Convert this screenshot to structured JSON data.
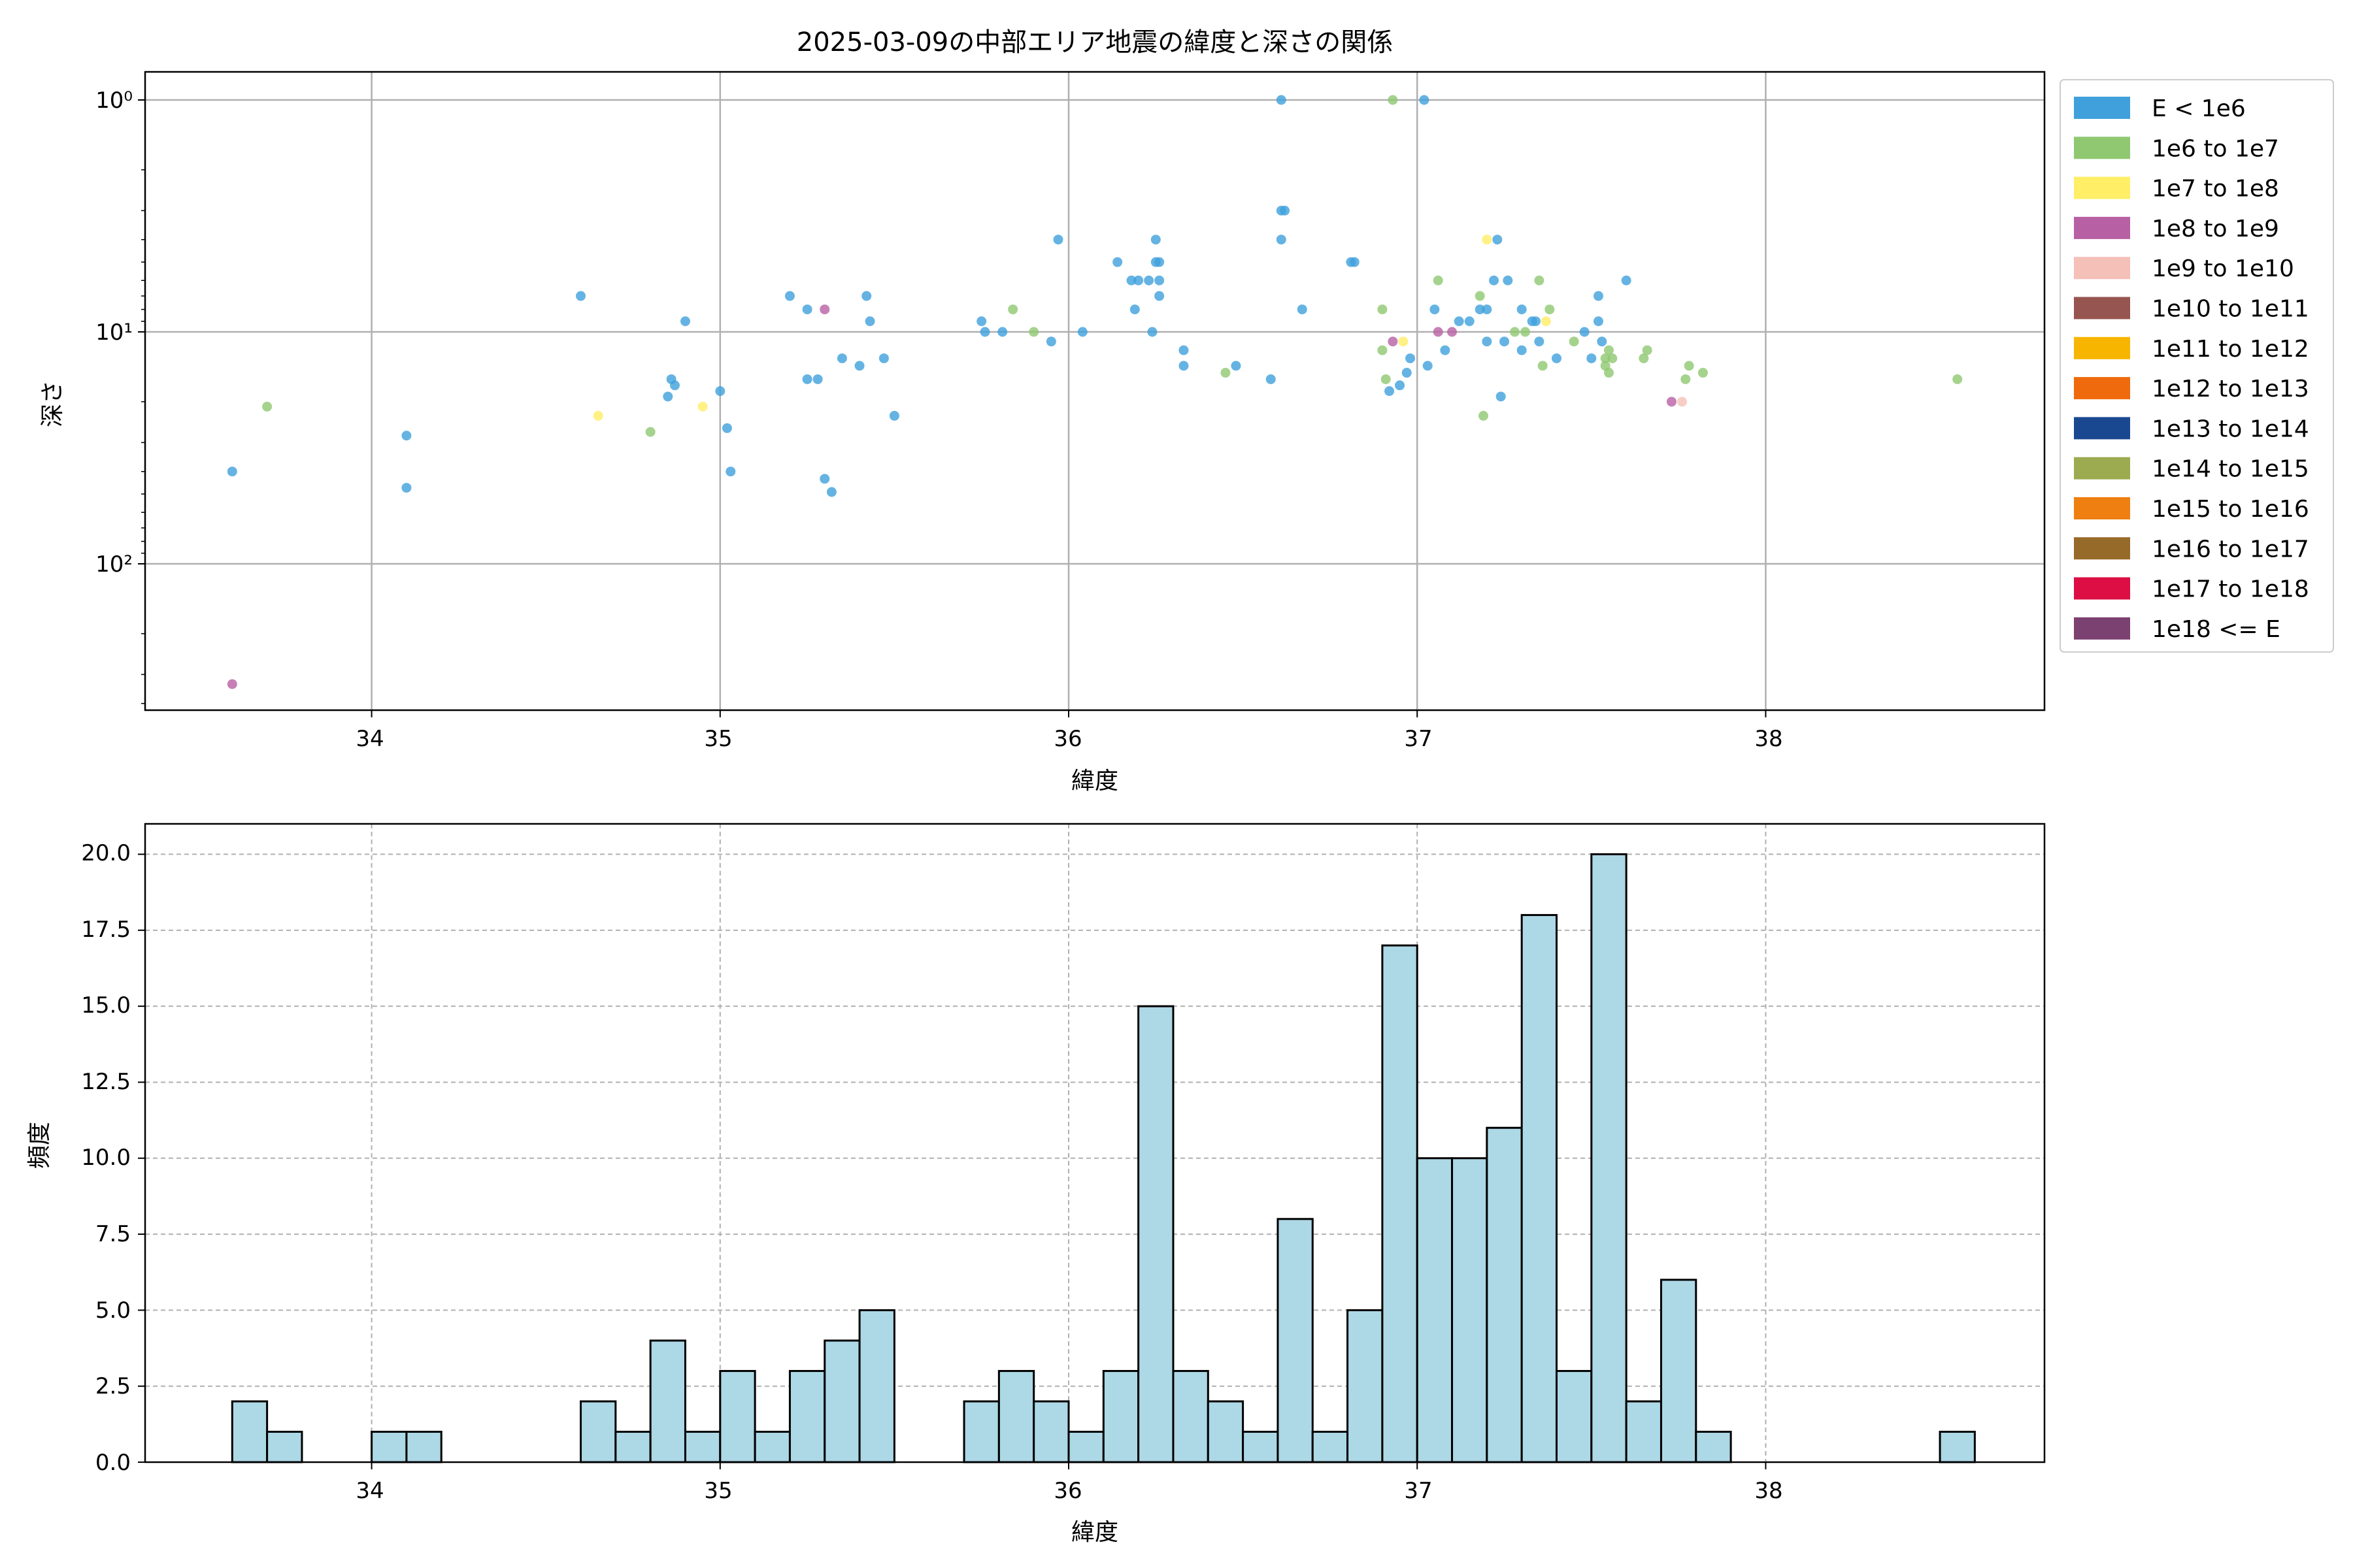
{
  "scatter_plot": {
    "title": "2025-03-09の中部エリア地震の緯度と深さの関係",
    "xlabel": "緯度",
    "ylabel": "深さ",
    "ytick_labels": [
      "10⁰",
      "10¹",
      "10²"
    ],
    "xtick_labels": [
      "34",
      "35",
      "36",
      "37",
      "38"
    ]
  },
  "histogram": {
    "xlabel": "緯度",
    "ylabel": "頻度",
    "ytick_labels": [
      "0.0",
      "2.5",
      "5.0",
      "7.5",
      "10.0",
      "12.5",
      "15.0",
      "17.5",
      "20.0"
    ],
    "xtick_labels": [
      "34",
      "35",
      "36",
      "37",
      "38"
    ]
  },
  "legend": {
    "entries": [
      {
        "label": "E < 1e6",
        "color": "#3fa0dc"
      },
      {
        "label": "1e6 to 1e7",
        "color": "#8fc870"
      },
      {
        "label": "1e7 to 1e8",
        "color": "#ffee66"
      },
      {
        "label": "1e8 to 1e9",
        "color": "#b860a4"
      },
      {
        "label": "1e9 to 1e10",
        "color": "#f5c0b8"
      },
      {
        "label": "1e10 to 1e11",
        "color": "#965550"
      },
      {
        "label": "1e11 to 1e12",
        "color": "#f8b500"
      },
      {
        "label": "1e12 to 1e13",
        "color": "#ee6a0c"
      },
      {
        "label": "1e13 to 1e14",
        "color": "#1a4890"
      },
      {
        "label": "1e14 to 1e15",
        "color": "#9caa50"
      },
      {
        "label": "1e15 to 1e16",
        "color": "#ee7f10"
      },
      {
        "label": "1e16 to 1e17",
        "color": "#966a28"
      },
      {
        "label": "1e17 to 1e18",
        "color": "#dc0e44"
      },
      {
        "label": "1e18 <= E",
        "color": "#7b4170"
      }
    ]
  },
  "chart_data": [
    {
      "type": "scatter",
      "title": "2025-03-09の中部エリア地震の緯度と深さの関係",
      "xlabel": "緯度",
      "ylabel": "深さ",
      "yscale": "log",
      "yaxis_inverted": true,
      "xlim": [
        33.35,
        38.8
      ],
      "ylim": [
        1,
        400
      ],
      "grid": true,
      "legend_placement": "outside right",
      "points": [
        {
          "x": 33.6,
          "y": 40,
          "e": 0
        },
        {
          "x": 33.6,
          "y": 330,
          "e": 3
        },
        {
          "x": 33.7,
          "y": 21,
          "e": 1
        },
        {
          "x": 34.1,
          "y": 47,
          "e": 0
        },
        {
          "x": 34.1,
          "y": 28,
          "e": 0
        },
        {
          "x": 34.6,
          "y": 7,
          "e": 0
        },
        {
          "x": 34.65,
          "y": 23,
          "e": 2
        },
        {
          "x": 34.8,
          "y": 27,
          "e": 1
        },
        {
          "x": 34.85,
          "y": 19,
          "e": 0
        },
        {
          "x": 34.86,
          "y": 16,
          "e": 0
        },
        {
          "x": 34.87,
          "y": 17,
          "e": 0
        },
        {
          "x": 34.9,
          "y": 9,
          "e": 0
        },
        {
          "x": 34.95,
          "y": 21,
          "e": 2
        },
        {
          "x": 35.0,
          "y": 18,
          "e": 0
        },
        {
          "x": 35.02,
          "y": 26,
          "e": 0
        },
        {
          "x": 35.03,
          "y": 40,
          "e": 0
        },
        {
          "x": 35.2,
          "y": 7,
          "e": 0
        },
        {
          "x": 35.25,
          "y": 8,
          "e": 0
        },
        {
          "x": 35.25,
          "y": 16,
          "e": 0
        },
        {
          "x": 35.28,
          "y": 16,
          "e": 0
        },
        {
          "x": 35.3,
          "y": 43,
          "e": 0
        },
        {
          "x": 35.3,
          "y": 8,
          "e": 3
        },
        {
          "x": 35.32,
          "y": 49,
          "e": 0
        },
        {
          "x": 35.35,
          "y": 13,
          "e": 0
        },
        {
          "x": 35.4,
          "y": 14,
          "e": 0
        },
        {
          "x": 35.42,
          "y": 7,
          "e": 0
        },
        {
          "x": 35.43,
          "y": 9,
          "e": 0
        },
        {
          "x": 35.47,
          "y": 13,
          "e": 0
        },
        {
          "x": 35.5,
          "y": 23,
          "e": 0
        },
        {
          "x": 35.75,
          "y": 9,
          "e": 0
        },
        {
          "x": 35.76,
          "y": 10,
          "e": 0
        },
        {
          "x": 35.81,
          "y": 10,
          "e": 0
        },
        {
          "x": 35.84,
          "y": 8,
          "e": 1
        },
        {
          "x": 35.9,
          "y": 10,
          "e": 1
        },
        {
          "x": 35.95,
          "y": 11,
          "e": 0
        },
        {
          "x": 35.97,
          "y": 4,
          "e": 0
        },
        {
          "x": 36.04,
          "y": 10,
          "e": 0
        },
        {
          "x": 36.14,
          "y": 5,
          "e": 0
        },
        {
          "x": 36.18,
          "y": 6,
          "e": 0
        },
        {
          "x": 36.19,
          "y": 8,
          "e": 0
        },
        {
          "x": 36.2,
          "y": 6,
          "e": 0
        },
        {
          "x": 36.23,
          "y": 6,
          "e": 0
        },
        {
          "x": 36.24,
          "y": 10,
          "e": 0
        },
        {
          "x": 36.25,
          "y": 4,
          "e": 0
        },
        {
          "x": 36.25,
          "y": 5,
          "e": 0
        },
        {
          "x": 36.26,
          "y": 7,
          "e": 0
        },
        {
          "x": 36.26,
          "y": 5,
          "e": 0
        },
        {
          "x": 36.26,
          "y": 6,
          "e": 0
        },
        {
          "x": 36.33,
          "y": 12,
          "e": 0
        },
        {
          "x": 36.33,
          "y": 14,
          "e": 0
        },
        {
          "x": 36.45,
          "y": 15,
          "e": 1
        },
        {
          "x": 36.48,
          "y": 14,
          "e": 0
        },
        {
          "x": 36.58,
          "y": 16,
          "e": 0
        },
        {
          "x": 36.61,
          "y": 1,
          "e": 0
        },
        {
          "x": 36.61,
          "y": 3,
          "e": 0
        },
        {
          "x": 36.61,
          "y": 4,
          "e": 0
        },
        {
          "x": 36.62,
          "y": 3,
          "e": 0
        },
        {
          "x": 36.67,
          "y": 8,
          "e": 0
        },
        {
          "x": 36.81,
          "y": 5,
          "e": 0
        },
        {
          "x": 36.82,
          "y": 5,
          "e": 0
        },
        {
          "x": 36.9,
          "y": 8,
          "e": 1
        },
        {
          "x": 36.9,
          "y": 12,
          "e": 1
        },
        {
          "x": 36.91,
          "y": 16,
          "e": 1
        },
        {
          "x": 36.92,
          "y": 18,
          "e": 0
        },
        {
          "x": 36.93,
          "y": 11,
          "e": 3
        },
        {
          "x": 36.93,
          "y": 1,
          "e": 1
        },
        {
          "x": 36.95,
          "y": 17,
          "e": 0
        },
        {
          "x": 36.96,
          "y": 11,
          "e": 2
        },
        {
          "x": 36.97,
          "y": 15,
          "e": 0
        },
        {
          "x": 36.98,
          "y": 13,
          "e": 0
        },
        {
          "x": 37.02,
          "y": 1,
          "e": 0
        },
        {
          "x": 37.03,
          "y": 14,
          "e": 0
        },
        {
          "x": 37.05,
          "y": 8,
          "e": 0
        },
        {
          "x": 37.06,
          "y": 6,
          "e": 1
        },
        {
          "x": 37.06,
          "y": 10,
          "e": 3
        },
        {
          "x": 37.08,
          "y": 12,
          "e": 0
        },
        {
          "x": 37.1,
          "y": 10,
          "e": 3
        },
        {
          "x": 37.12,
          "y": 9,
          "e": 0
        },
        {
          "x": 37.15,
          "y": 9,
          "e": 0
        },
        {
          "x": 37.18,
          "y": 8,
          "e": 0
        },
        {
          "x": 37.18,
          "y": 7,
          "e": 1
        },
        {
          "x": 37.19,
          "y": 23,
          "e": 1
        },
        {
          "x": 37.2,
          "y": 4,
          "e": 2
        },
        {
          "x": 37.2,
          "y": 8,
          "e": 0
        },
        {
          "x": 37.2,
          "y": 11,
          "e": 0
        },
        {
          "x": 37.22,
          "y": 6,
          "e": 0
        },
        {
          "x": 37.23,
          "y": 4,
          "e": 0
        },
        {
          "x": 37.24,
          "y": 19,
          "e": 0
        },
        {
          "x": 37.25,
          "y": 11,
          "e": 0
        },
        {
          "x": 37.26,
          "y": 6,
          "e": 0
        },
        {
          "x": 37.28,
          "y": 10,
          "e": 1
        },
        {
          "x": 37.3,
          "y": 8,
          "e": 0
        },
        {
          "x": 37.3,
          "y": 12,
          "e": 0
        },
        {
          "x": 37.31,
          "y": 10,
          "e": 1
        },
        {
          "x": 37.33,
          "y": 9,
          "e": 0
        },
        {
          "x": 37.34,
          "y": 9,
          "e": 0
        },
        {
          "x": 37.35,
          "y": 6,
          "e": 1
        },
        {
          "x": 37.35,
          "y": 11,
          "e": 0
        },
        {
          "x": 37.36,
          "y": 14,
          "e": 1
        },
        {
          "x": 37.37,
          "y": 9,
          "e": 2
        },
        {
          "x": 37.38,
          "y": 8,
          "e": 1
        },
        {
          "x": 37.4,
          "y": 13,
          "e": 0
        },
        {
          "x": 37.45,
          "y": 11,
          "e": 1
        },
        {
          "x": 37.48,
          "y": 10,
          "e": 0
        },
        {
          "x": 37.5,
          "y": 13,
          "e": 0
        },
        {
          "x": 37.52,
          "y": 7,
          "e": 0
        },
        {
          "x": 37.52,
          "y": 9,
          "e": 0
        },
        {
          "x": 37.53,
          "y": 11,
          "e": 0
        },
        {
          "x": 37.54,
          "y": 13,
          "e": 1
        },
        {
          "x": 37.54,
          "y": 14,
          "e": 1
        },
        {
          "x": 37.55,
          "y": 12,
          "e": 1
        },
        {
          "x": 37.55,
          "y": 15,
          "e": 1
        },
        {
          "x": 37.56,
          "y": 13,
          "e": 1
        },
        {
          "x": 37.6,
          "y": 6,
          "e": 0
        },
        {
          "x": 37.65,
          "y": 13,
          "e": 1
        },
        {
          "x": 37.66,
          "y": 12,
          "e": 1
        },
        {
          "x": 37.73,
          "y": 20,
          "e": 3
        },
        {
          "x": 37.76,
          "y": 20,
          "e": 4
        },
        {
          "x": 37.77,
          "y": 16,
          "e": 1
        },
        {
          "x": 37.78,
          "y": 14,
          "e": 1
        },
        {
          "x": 37.82,
          "y": 15,
          "e": 1
        },
        {
          "x": 38.55,
          "y": 16,
          "e": 1
        }
      ]
    },
    {
      "type": "bar",
      "subtype": "histogram",
      "xlabel": "緯度",
      "ylabel": "頻度",
      "xlim": [
        33.35,
        38.8
      ],
      "ylim": [
        0,
        21
      ],
      "bar_color": "#add8e6",
      "edge_color": "#000000",
      "grid": "dashed",
      "bins": [
        {
          "x0": 33.6,
          "x1": 33.7,
          "count": 2
        },
        {
          "x0": 33.7,
          "x1": 33.8,
          "count": 1
        },
        {
          "x0": 34.0,
          "x1": 34.1,
          "count": 1
        },
        {
          "x0": 34.1,
          "x1": 34.2,
          "count": 1
        },
        {
          "x0": 34.6,
          "x1": 34.7,
          "count": 2
        },
        {
          "x0": 34.7,
          "x1": 34.8,
          "count": 1
        },
        {
          "x0": 34.8,
          "x1": 34.9,
          "count": 4
        },
        {
          "x0": 34.9,
          "x1": 35.0,
          "count": 1
        },
        {
          "x0": 35.0,
          "x1": 35.1,
          "count": 3
        },
        {
          "x0": 35.1,
          "x1": 35.2,
          "count": 1
        },
        {
          "x0": 35.2,
          "x1": 35.3,
          "count": 3
        },
        {
          "x0": 35.3,
          "x1": 35.4,
          "count": 4
        },
        {
          "x0": 35.4,
          "x1": 35.5,
          "count": 5
        },
        {
          "x0": 35.7,
          "x1": 35.8,
          "count": 2
        },
        {
          "x0": 35.8,
          "x1": 35.9,
          "count": 3
        },
        {
          "x0": 35.9,
          "x1": 36.0,
          "count": 2
        },
        {
          "x0": 36.0,
          "x1": 36.1,
          "count": 1
        },
        {
          "x0": 36.1,
          "x1": 36.2,
          "count": 3
        },
        {
          "x0": 36.2,
          "x1": 36.3,
          "count": 15
        },
        {
          "x0": 36.3,
          "x1": 36.4,
          "count": 3
        },
        {
          "x0": 36.4,
          "x1": 36.5,
          "count": 2
        },
        {
          "x0": 36.5,
          "x1": 36.6,
          "count": 1
        },
        {
          "x0": 36.6,
          "x1": 36.7,
          "count": 8
        },
        {
          "x0": 36.7,
          "x1": 36.8,
          "count": 1
        },
        {
          "x0": 36.8,
          "x1": 36.9,
          "count": 5
        },
        {
          "x0": 36.9,
          "x1": 37.0,
          "count": 17
        },
        {
          "x0": 37.0,
          "x1": 37.1,
          "count": 10
        },
        {
          "x0": 37.1,
          "x1": 37.2,
          "count": 10
        },
        {
          "x0": 37.2,
          "x1": 37.3,
          "count": 11
        },
        {
          "x0": 37.3,
          "x1": 37.4,
          "count": 18
        },
        {
          "x0": 37.4,
          "x1": 37.5,
          "count": 3
        },
        {
          "x0": 37.5,
          "x1": 37.6,
          "count": 20
        },
        {
          "x0": 37.6,
          "x1": 37.7,
          "count": 2
        },
        {
          "x0": 37.7,
          "x1": 37.8,
          "count": 6
        },
        {
          "x0": 37.8,
          "x1": 37.9,
          "count": 1
        },
        {
          "x0": 38.5,
          "x1": 38.6,
          "count": 1
        }
      ]
    }
  ]
}
